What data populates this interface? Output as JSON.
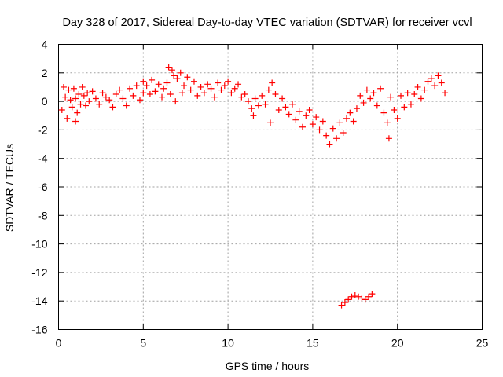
{
  "chart_data": {
    "type": "scatter",
    "title": "Day 328 of 2017, Sidereal Day-to-day VTEC variation (SDTVAR) for receiver vcvl",
    "xlabel": "GPS time / hours",
    "ylabel": "SDTVAR / TECUs",
    "xlim": [
      0,
      25
    ],
    "ylim": [
      -16,
      4
    ],
    "xticks": [
      "0",
      "5",
      "10",
      "15",
      "20",
      "25"
    ],
    "yticks": [
      "4",
      "2",
      "0",
      "-2",
      "-4",
      "-6",
      "-8",
      "-10",
      "-12",
      "-14",
      "-16"
    ],
    "grid": true,
    "marker": "+",
    "color": "#ff0000",
    "series": [
      {
        "name": "SDTVAR",
        "points": [
          [
            0.2,
            -0.6
          ],
          [
            0.3,
            1.0
          ],
          [
            0.4,
            0.3
          ],
          [
            0.5,
            -1.2
          ],
          [
            0.6,
            0.8
          ],
          [
            0.7,
            0.1
          ],
          [
            0.8,
            -0.4
          ],
          [
            0.9,
            0.9
          ],
          [
            1.0,
            0.2
          ],
          [
            1.0,
            -1.4
          ],
          [
            1.1,
            -0.8
          ],
          [
            1.2,
            0.5
          ],
          [
            1.3,
            -0.2
          ],
          [
            1.4,
            1.0
          ],
          [
            1.5,
            0.4
          ],
          [
            1.6,
            -0.3
          ],
          [
            1.7,
            0.6
          ],
          [
            1.8,
            0.0
          ],
          [
            2.0,
            0.7
          ],
          [
            2.2,
            0.2
          ],
          [
            2.4,
            -0.2
          ],
          [
            2.6,
            0.6
          ],
          [
            2.8,
            0.3
          ],
          [
            3.0,
            0.1
          ],
          [
            3.2,
            -0.4
          ],
          [
            3.4,
            0.5
          ],
          [
            3.6,
            0.8
          ],
          [
            3.8,
            0.2
          ],
          [
            4.0,
            -0.3
          ],
          [
            4.2,
            0.9
          ],
          [
            4.4,
            0.4
          ],
          [
            4.6,
            1.1
          ],
          [
            4.8,
            0.1
          ],
          [
            5.0,
            0.6
          ],
          [
            5.0,
            1.4
          ],
          [
            5.2,
            1.1
          ],
          [
            5.4,
            0.5
          ],
          [
            5.5,
            1.5
          ],
          [
            5.7,
            0.7
          ],
          [
            5.9,
            1.2
          ],
          [
            6.1,
            0.3
          ],
          [
            6.2,
            0.9
          ],
          [
            6.4,
            1.3
          ],
          [
            6.5,
            2.4
          ],
          [
            6.6,
            0.5
          ],
          [
            6.7,
            2.2
          ],
          [
            6.8,
            1.8
          ],
          [
            6.9,
            0.0
          ],
          [
            7.0,
            1.6
          ],
          [
            7.2,
            2.0
          ],
          [
            7.3,
            0.6
          ],
          [
            7.4,
            1.1
          ],
          [
            7.6,
            1.7
          ],
          [
            7.8,
            0.8
          ],
          [
            8.0,
            1.4
          ],
          [
            8.2,
            0.4
          ],
          [
            8.4,
            1.0
          ],
          [
            8.6,
            0.6
          ],
          [
            8.8,
            1.2
          ],
          [
            9.0,
            0.9
          ],
          [
            9.2,
            0.3
          ],
          [
            9.4,
            1.3
          ],
          [
            9.6,
            0.8
          ],
          [
            9.8,
            1.1
          ],
          [
            10.0,
            1.4
          ],
          [
            10.2,
            0.6
          ],
          [
            10.4,
            0.9
          ],
          [
            10.6,
            1.2
          ],
          [
            10.8,
            0.3
          ],
          [
            11.0,
            0.5
          ],
          [
            11.2,
            0.0
          ],
          [
            11.4,
            -0.5
          ],
          [
            11.5,
            -1.0
          ],
          [
            11.6,
            0.2
          ],
          [
            11.8,
            -0.3
          ],
          [
            12.0,
            0.4
          ],
          [
            12.2,
            -0.2
          ],
          [
            12.4,
            0.8
          ],
          [
            12.5,
            -1.5
          ],
          [
            12.6,
            1.3
          ],
          [
            12.8,
            0.5
          ],
          [
            13.0,
            -0.6
          ],
          [
            13.2,
            0.2
          ],
          [
            13.4,
            -0.4
          ],
          [
            13.6,
            -0.9
          ],
          [
            13.8,
            -0.2
          ],
          [
            14.0,
            -1.3
          ],
          [
            14.2,
            -0.7
          ],
          [
            14.4,
            -1.8
          ],
          [
            14.6,
            -1.0
          ],
          [
            14.8,
            -0.6
          ],
          [
            15.0,
            -1.6
          ],
          [
            15.2,
            -1.1
          ],
          [
            15.4,
            -2.0
          ],
          [
            15.6,
            -1.4
          ],
          [
            15.8,
            -2.4
          ],
          [
            16.0,
            -3.0
          ],
          [
            16.2,
            -1.9
          ],
          [
            16.4,
            -2.6
          ],
          [
            16.6,
            -1.5
          ],
          [
            16.8,
            -2.2
          ],
          [
            17.0,
            -1.2
          ],
          [
            17.2,
            -0.8
          ],
          [
            17.4,
            -1.4
          ],
          [
            17.6,
            -0.5
          ],
          [
            17.8,
            0.4
          ],
          [
            18.0,
            -0.1
          ],
          [
            18.2,
            0.8
          ],
          [
            18.4,
            0.2
          ],
          [
            18.6,
            0.6
          ],
          [
            18.8,
            -0.3
          ],
          [
            19.0,
            0.9
          ],
          [
            19.2,
            -0.8
          ],
          [
            19.4,
            -1.5
          ],
          [
            19.5,
            -2.6
          ],
          [
            19.6,
            0.3
          ],
          [
            19.8,
            -0.6
          ],
          [
            20.0,
            -1.2
          ],
          [
            20.2,
            0.4
          ],
          [
            20.4,
            -0.4
          ],
          [
            20.6,
            0.6
          ],
          [
            20.8,
            -0.2
          ],
          [
            21.0,
            0.5
          ],
          [
            21.2,
            1.0
          ],
          [
            21.4,
            0.2
          ],
          [
            21.6,
            0.8
          ],
          [
            21.8,
            1.4
          ],
          [
            22.0,
            1.6
          ],
          [
            22.2,
            1.1
          ],
          [
            22.4,
            1.8
          ],
          [
            22.6,
            1.3
          ],
          [
            22.8,
            0.6
          ],
          [
            16.7,
            -14.3
          ],
          [
            16.9,
            -14.1
          ],
          [
            17.1,
            -13.9
          ],
          [
            17.3,
            -13.7
          ],
          [
            17.5,
            -13.6
          ],
          [
            17.7,
            -13.7
          ],
          [
            17.9,
            -13.8
          ],
          [
            18.1,
            -13.9
          ],
          [
            18.3,
            -13.7
          ],
          [
            18.5,
            -13.5
          ]
        ]
      }
    ]
  }
}
